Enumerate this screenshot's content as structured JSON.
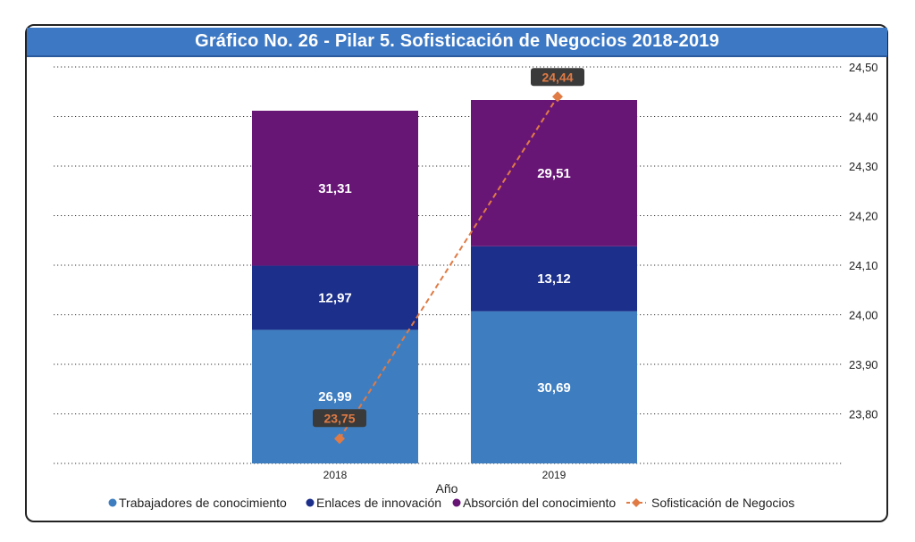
{
  "chart_data": {
    "type": "stacked-bar+line",
    "title": "Gráfico No. 26 - Pilar 5. Sofisticación de Negocios 2018-2019",
    "xlabel": "Año",
    "categories": [
      "2018",
      "2019"
    ],
    "series": [
      {
        "name": "Trabajadores de conocimiento",
        "type": "bar",
        "color": "#3e7ec0",
        "values": [
          26.99,
          30.69
        ],
        "labels": [
          "26,99",
          "30,69"
        ]
      },
      {
        "name": "Enlaces de innovación",
        "type": "bar",
        "color": "#1c2f8a",
        "values": [
          12.97,
          13.12
        ],
        "labels": [
          "12,97",
          "13,12"
        ]
      },
      {
        "name": "Absorción del conocimiento",
        "type": "bar",
        "color": "#681676",
        "values": [
          31.31,
          29.51
        ],
        "labels": [
          "31,31",
          "29,51"
        ]
      },
      {
        "name": "Sofisticación de Negocios",
        "type": "line",
        "color": "#e07b45",
        "axis": "right",
        "values": [
          23.75,
          24.44
        ],
        "labels": [
          "23,75",
          "24,44"
        ]
      }
    ],
    "y2lim": [
      23.7,
      24.5
    ],
    "y2ticks": [
      "24,50",
      "24,40",
      "24,30",
      "24,20",
      "24,10",
      "24,00",
      "23,90",
      "23,80"
    ],
    "legend_position": "bottom"
  }
}
